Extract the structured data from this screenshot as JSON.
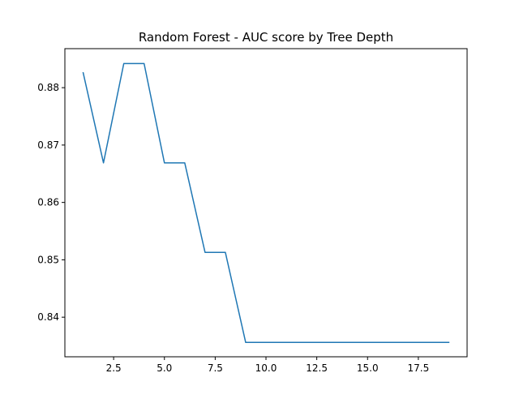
{
  "chart_data": {
    "type": "line",
    "title": "Random Forest - AUC score by Tree Depth",
    "xlabel": "",
    "ylabel": "",
    "xlim": [
      0.1,
      19.9
    ],
    "ylim": [
      0.8331,
      0.8868
    ],
    "x_ticks": [
      2.5,
      5.0,
      7.5,
      10.0,
      12.5,
      15.0,
      17.5
    ],
    "x_tick_labels": [
      "2.5",
      "5.0",
      "7.5",
      "10.0",
      "12.5",
      "15.0",
      "17.5"
    ],
    "y_ticks": [
      0.84,
      0.85,
      0.86,
      0.87,
      0.88
    ],
    "y_tick_labels": [
      "0.84",
      "0.85",
      "0.86",
      "0.87",
      "0.88"
    ],
    "grid": false,
    "series": [
      {
        "color": "#1f77b4",
        "x": [
          1,
          2,
          3,
          4,
          5,
          6,
          7,
          8,
          9,
          10,
          11,
          12,
          13,
          14,
          15,
          16,
          17,
          18,
          19
        ],
        "y": [
          0.8826,
          0.8669,
          0.8842,
          0.8842,
          0.8669,
          0.8669,
          0.8513,
          0.8513,
          0.8356,
          0.8356,
          0.8356,
          0.8356,
          0.8356,
          0.8356,
          0.8356,
          0.8356,
          0.8356,
          0.8356,
          0.8356
        ]
      }
    ]
  }
}
